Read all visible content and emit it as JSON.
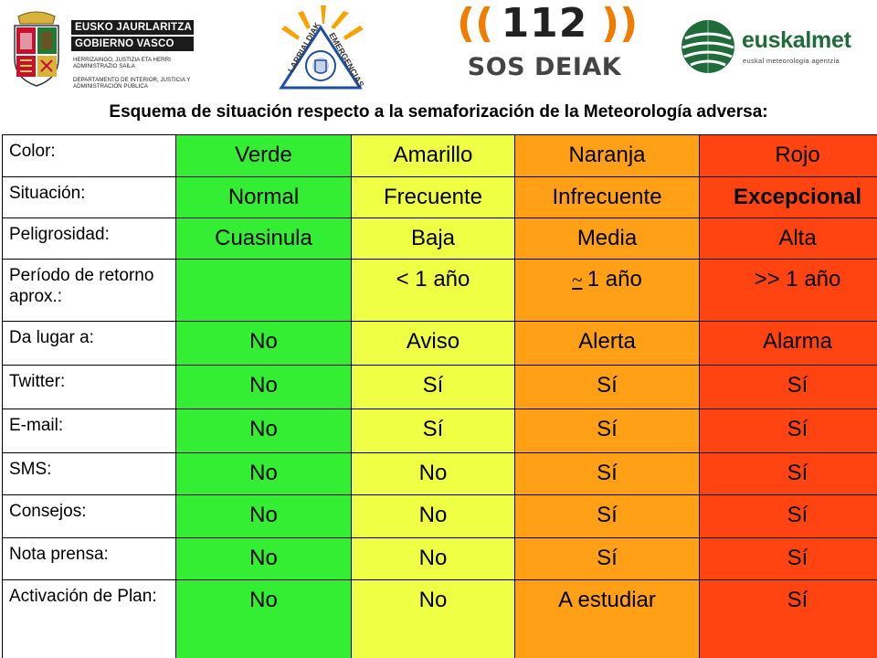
{
  "logos": {
    "gobierno": {
      "line1": "EUSKO JAURLARITZA",
      "line2": "GOBIERNO VASCO",
      "dept1": "HERRIZAINGO, JUSTIZIA ETA HERRI ADMINISTRAZIO SAILA",
      "dept2": "DEPARTAMENTO DE INTERIOR, JUSTICIA Y ADMINISTRACIÓN PÚBLICA"
    },
    "larrialdiak": {
      "left_text": "LARRIALDIAK",
      "right_text": "EMERGENCIAS"
    },
    "sos": {
      "number": "112",
      "text": "SOS DEIAK"
    },
    "euskalmet": {
      "name": "euskalmet",
      "subtitle": "euskal meteorologia agentzia"
    },
    "colors": {
      "green": "#1f6b3a",
      "orange": "#f07c00",
      "yellow": "#f7c400",
      "blue": "#1f4fa0"
    }
  },
  "heading": "Esquema de situación respecto a la semaforización de la Meteorología adversa:",
  "table": {
    "column_colors": [
      "#33ee33",
      "#eeff44",
      "#ffa017",
      "#ff4411"
    ],
    "rows": {
      "color": {
        "label": "Color:",
        "values": [
          "Verde",
          "Amarillo",
          "Naranja",
          "Rojo"
        ]
      },
      "situacion": {
        "label": "Situación:",
        "values": [
          "Normal",
          "Frecuente",
          "Infrecuente",
          "Excepcional"
        ]
      },
      "peligrosidad": {
        "label": "Peligrosidad:",
        "values": [
          "Cuasinula",
          "Baja",
          "Media",
          "Alta"
        ]
      },
      "periodo": {
        "label": "Período de retorno aprox.:",
        "values": [
          "",
          "< 1 año",
          "1 año",
          ">> 1 año"
        ],
        "approx_symbol": "~"
      },
      "da_lugar": {
        "label": "Da lugar a:",
        "values": [
          "No",
          "Aviso",
          "Alerta",
          "Alarma"
        ]
      },
      "twitter": {
        "label": "Twitter:",
        "values": [
          "No",
          "Sí",
          "Sí",
          "Sí"
        ]
      },
      "email": {
        "label": "E-mail:",
        "values": [
          "No",
          "Sí",
          "Sí",
          "Sí"
        ]
      },
      "sms": {
        "label": "SMS:",
        "values": [
          "No",
          "No",
          "Sí",
          "Sí"
        ]
      },
      "consejos": {
        "label": "Consejos:",
        "values": [
          "No",
          "No",
          "Sí",
          "Sí"
        ]
      },
      "nota": {
        "label": "Nota prensa:",
        "values": [
          "No",
          "No",
          "Sí",
          "Sí"
        ]
      },
      "activacion": {
        "label": "Activación de Plan:",
        "values": [
          "No",
          "No",
          "A estudiar",
          "Sí"
        ]
      }
    }
  }
}
